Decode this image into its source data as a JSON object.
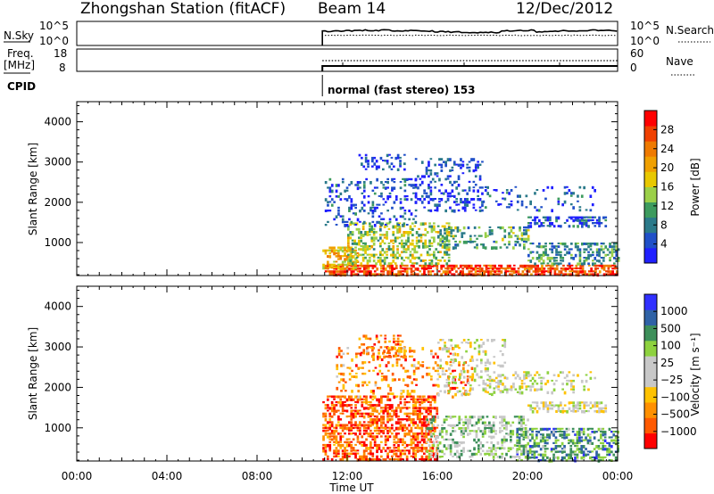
{
  "header": {
    "station": "Zhongshan Station (fitACF)",
    "beam": "Beam 14",
    "date": "12/Dec/2012"
  },
  "summary": {
    "nsky_label": "N.Sky",
    "nsearch_label": "N.Search",
    "freq_label_line1": "Freq.",
    "freq_label_line2": "[MHz]",
    "nave_label": "Nave",
    "cpid_label": "CPID",
    "cpid_text": "normal (fast stereo) 153",
    "noise_ticks_left": [
      "10^5",
      "10^0"
    ],
    "noise_ticks_right": [
      "10^5",
      "10^0"
    ],
    "freq_ticks": [
      "18",
      "8"
    ],
    "nave_ticks": [
      "60",
      "0"
    ]
  },
  "colors": {
    "power_scale": [
      "#2020ff",
      "#2050c8",
      "#2b7a8a",
      "#3d9b5e",
      "#9bd049",
      "#e8c800",
      "#f0a000",
      "#ef7a00",
      "#f04000",
      "#ff0000"
    ],
    "velocity_scale": [
      "#ff0000",
      "#ff5a00",
      "#ff9000",
      "#ffc200",
      "#c8c8c8",
      "#c8c8c8",
      "#8ed23f",
      "#3d8f5a",
      "#2f62a6",
      "#3030ff"
    ]
  },
  "chart_data": [
    {
      "type": "heatmap",
      "name_key": "power",
      "xlabel": "Time UT",
      "ylabel": "Slant Range [km]",
      "x_ticks": [
        "00:00",
        "04:00",
        "08:00",
        "12:00",
        "16:00",
        "20:00",
        "00:00"
      ],
      "x_tick_hours": [
        0,
        4,
        8,
        12,
        16,
        20,
        24
      ],
      "xlim_hours": [
        0,
        24
      ],
      "y_ticks": [
        1000,
        2000,
        3000,
        4000
      ],
      "ylim_km": [
        180,
        4500
      ],
      "colorbar_label": "Power [dB]",
      "colorbar_ticks": [
        "28",
        "24",
        "20",
        "16",
        "12",
        "8",
        "4"
      ],
      "colorbar_range": [
        0,
        30
      ],
      "data_start_hour": 10.9,
      "regions": [
        {
          "t0": 11.0,
          "t1": 24.0,
          "r0": 200,
          "r1": 450,
          "level": 0.85,
          "density": 0.75
        },
        {
          "t0": 10.9,
          "t1": 12.5,
          "r0": 350,
          "r1": 900,
          "level": 0.6,
          "density": 0.7
        },
        {
          "t0": 12.0,
          "t1": 16.5,
          "r0": 450,
          "r1": 1500,
          "level": 0.45,
          "density": 0.5
        },
        {
          "t0": 11.0,
          "t1": 15.0,
          "r0": 1400,
          "r1": 2600,
          "level": 0.15,
          "density": 0.25
        },
        {
          "t0": 12.5,
          "t1": 14.5,
          "r0": 2800,
          "r1": 3200,
          "level": 0.12,
          "density": 0.3
        },
        {
          "t0": 15.0,
          "t1": 18.0,
          "r0": 1800,
          "r1": 3100,
          "level": 0.12,
          "density": 0.3
        },
        {
          "t0": 16.0,
          "t1": 20.0,
          "r0": 900,
          "r1": 1400,
          "level": 0.35,
          "density": 0.35
        },
        {
          "t0": 20.0,
          "t1": 23.5,
          "r0": 1400,
          "r1": 1650,
          "level": 0.15,
          "density": 0.55
        },
        {
          "t0": 20.0,
          "t1": 24.0,
          "r0": 450,
          "r1": 1000,
          "level": 0.3,
          "density": 0.45
        },
        {
          "t0": 18.0,
          "t1": 23.0,
          "r0": 1800,
          "r1": 2400,
          "level": 0.15,
          "density": 0.2
        }
      ]
    },
    {
      "type": "heatmap",
      "name_key": "velocity",
      "xlabel": "Time UT",
      "ylabel": "Slant Range [km]",
      "x_ticks": [
        "00:00",
        "04:00",
        "08:00",
        "12:00",
        "16:00",
        "20:00",
        "00:00"
      ],
      "x_tick_hours": [
        0,
        4,
        8,
        12,
        16,
        20,
        24
      ],
      "xlim_hours": [
        0,
        24
      ],
      "y_ticks": [
        1000,
        2000,
        3000,
        4000
      ],
      "ylim_km": [
        180,
        4500
      ],
      "colorbar_label": "Velocity [m s⁻¹]",
      "colorbar_ticks": [
        "1000",
        "500",
        "100",
        "25",
        "−25",
        "−100",
        "−500",
        "−1000"
      ],
      "data_start_hour": 10.9,
      "regions": [
        {
          "t0": 10.9,
          "t1": 16.0,
          "r0": 200,
          "r1": 1800,
          "level": 0.15,
          "density": 0.6
        },
        {
          "t0": 12.5,
          "t1": 14.5,
          "r0": 2800,
          "r1": 3300,
          "level": 0.2,
          "density": 0.35
        },
        {
          "t0": 11.5,
          "t1": 17.5,
          "r0": 1800,
          "r1": 3000,
          "level": 0.25,
          "density": 0.2
        },
        {
          "t0": 16.0,
          "t1": 19.0,
          "r0": 1800,
          "r1": 3200,
          "level": 0.5,
          "density": 0.25
        },
        {
          "t0": 15.5,
          "t1": 20.0,
          "r0": 300,
          "r1": 1300,
          "level": 0.62,
          "density": 0.4
        },
        {
          "t0": 19.5,
          "t1": 24.0,
          "r0": 200,
          "r1": 1000,
          "level": 0.75,
          "density": 0.55
        },
        {
          "t0": 20.0,
          "t1": 23.5,
          "r0": 1400,
          "r1": 1650,
          "level": 0.5,
          "density": 0.55
        },
        {
          "t0": 18.0,
          "t1": 23.0,
          "r0": 1850,
          "r1": 2400,
          "level": 0.5,
          "density": 0.25
        }
      ]
    }
  ]
}
